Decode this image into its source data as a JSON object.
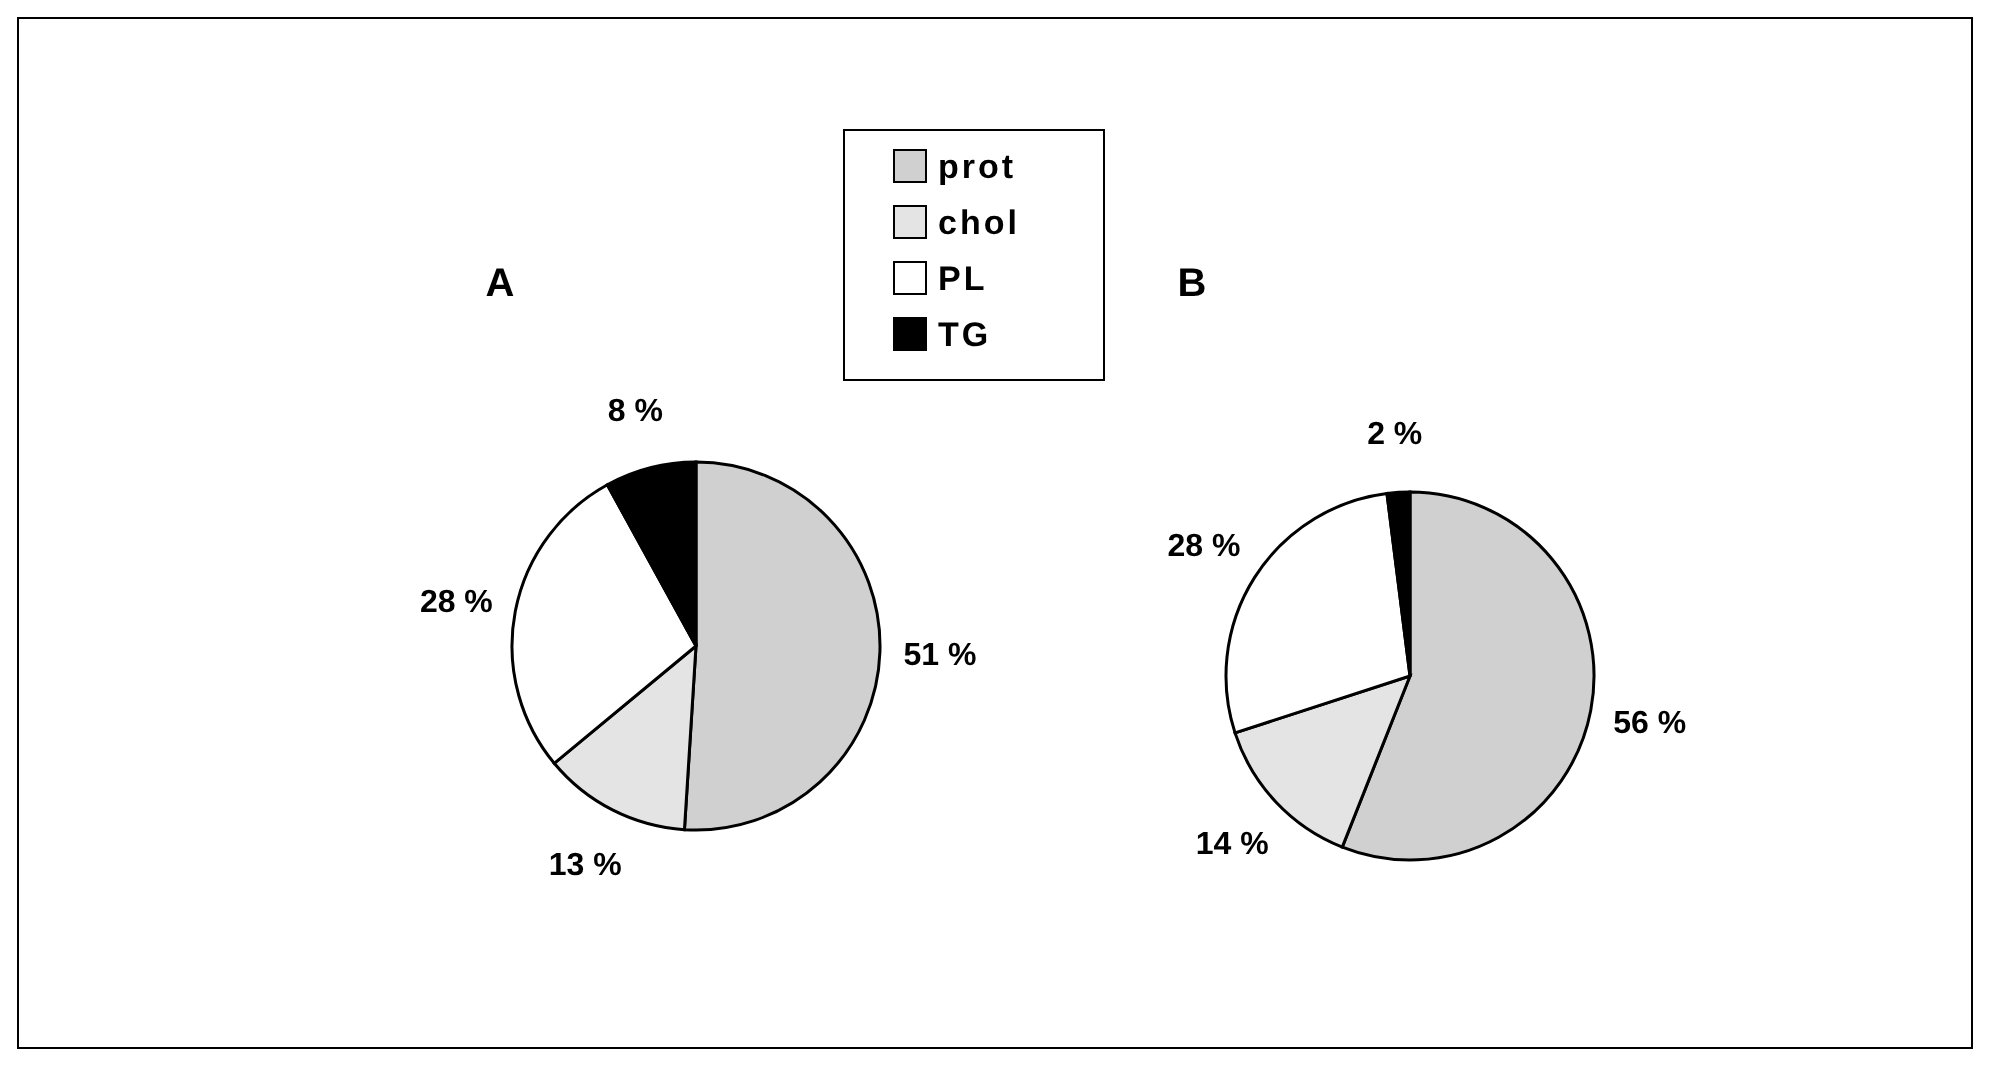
{
  "chart_data": [
    {
      "type": "pie",
      "title": "A",
      "categories": [
        "prot",
        "chol",
        "PL",
        "TG"
      ],
      "values": [
        51,
        13,
        28,
        8
      ],
      "colors": [
        "#d0d0d0",
        "#e4e4e4",
        "#ffffff",
        "#000000"
      ],
      "value_labels": [
        "51 %",
        "13 %",
        "28 %",
        "8 %"
      ],
      "legend": "top right"
    },
    {
      "type": "pie",
      "title": "B",
      "categories": [
        null,
        null,
        null,
        null
      ],
      "values": [
        56,
        14,
        28,
        2
      ],
      "colors": [
        "#d0d0d0",
        "#e4e4e4",
        "#ffffff",
        "#000000"
      ],
      "value_labels": [
        "56 %",
        "14 %",
        "28 %",
        "2 %"
      ]
    }
  ]
}
